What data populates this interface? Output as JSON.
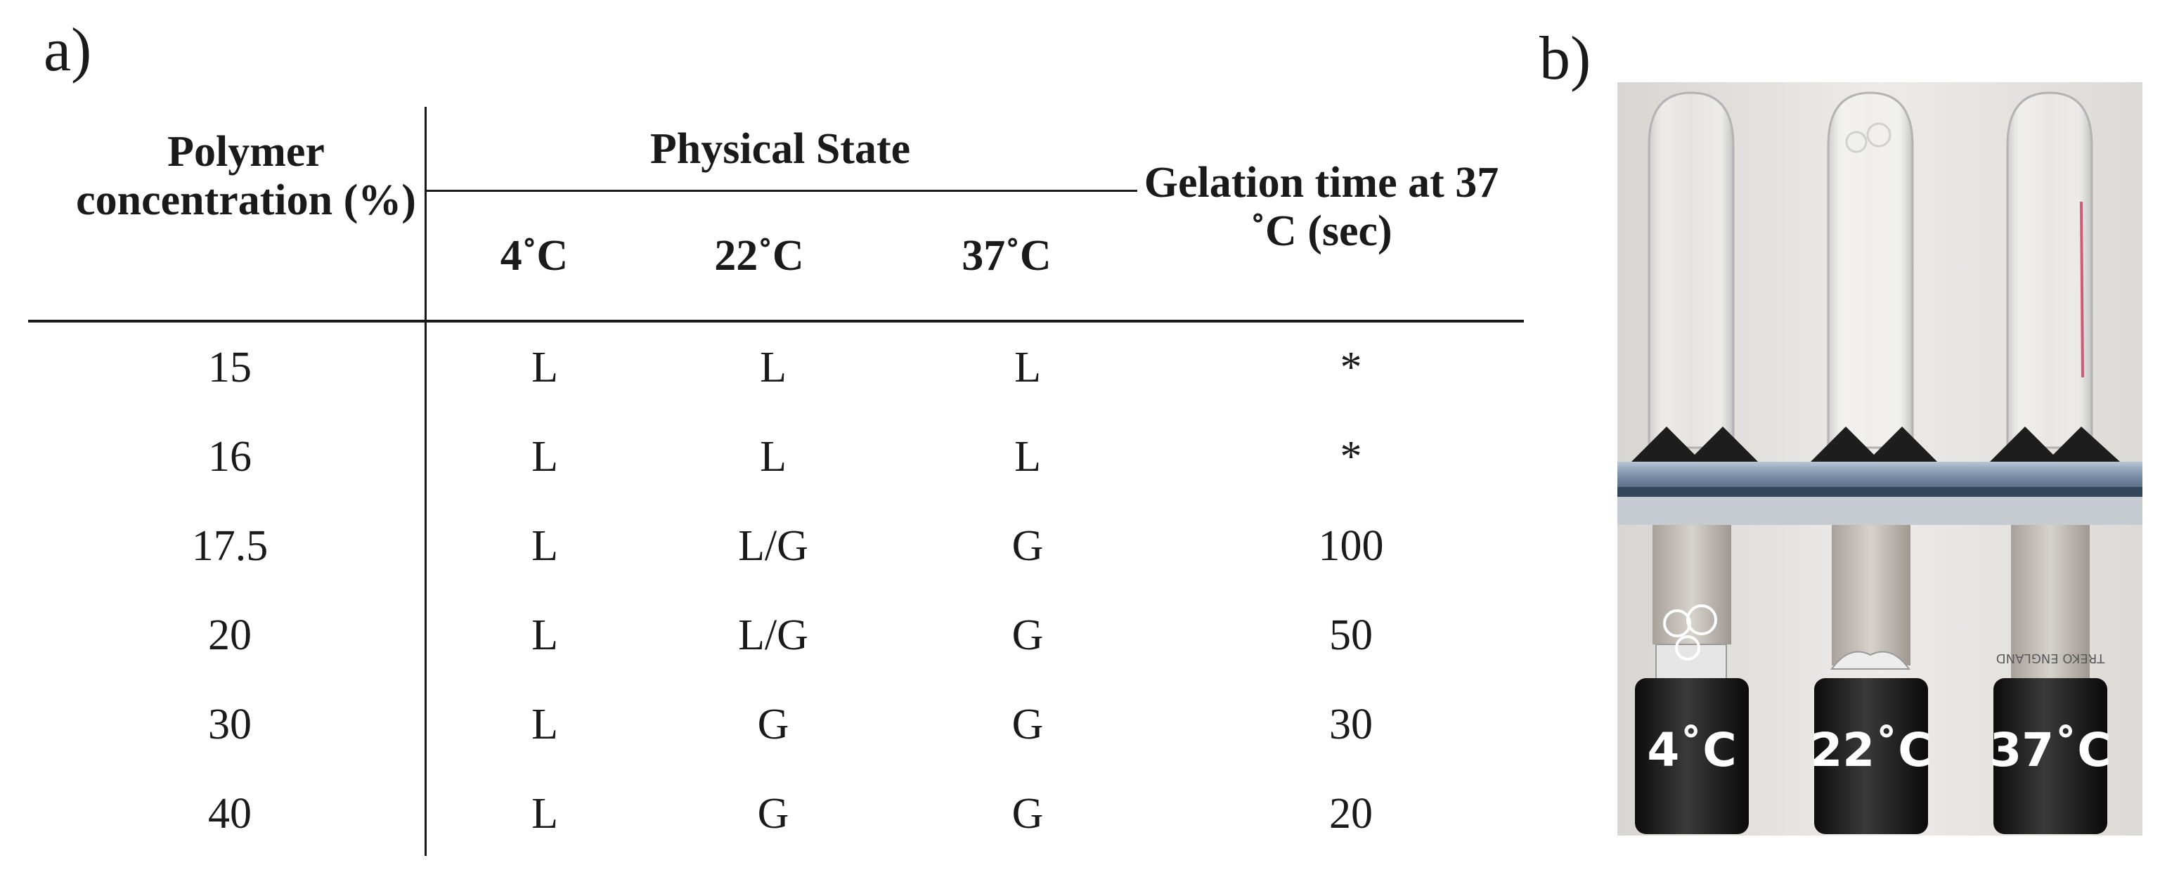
{
  "panel_a_label": "a)",
  "panel_b_label": "b)",
  "table": {
    "header_polymer": "Polymer concentration (%)",
    "header_physical_state": "Physical State",
    "header_gelation": "Gelation time at 37 ˚C (sec)",
    "temperatures": [
      "4˚C",
      "22˚C",
      "37˚C"
    ],
    "rows": [
      {
        "concentration": "15",
        "t4": "L",
        "t22": "L",
        "t37": "L",
        "gelation": "*"
      },
      {
        "concentration": "16",
        "t4": "L",
        "t22": "L",
        "t37": "L",
        "gelation": "*"
      },
      {
        "concentration": "17.5",
        "t4": "L",
        "t22": "L/G",
        "t37": "G",
        "gelation": "100"
      },
      {
        "concentration": "20",
        "t4": "L",
        "t22": "L/G",
        "t37": "G",
        "gelation": "50"
      },
      {
        "concentration": "30",
        "t4": "L",
        "t22": "G",
        "t37": "G",
        "gelation": "30"
      },
      {
        "concentration": "40",
        "t4": "L",
        "t22": "G",
        "t37": "G",
        "gelation": "20"
      }
    ]
  },
  "photo": {
    "tube_labels": [
      "4˚C",
      "22˚C",
      "37˚C"
    ],
    "tube_engraving": "TREKO ENGLAND"
  }
}
